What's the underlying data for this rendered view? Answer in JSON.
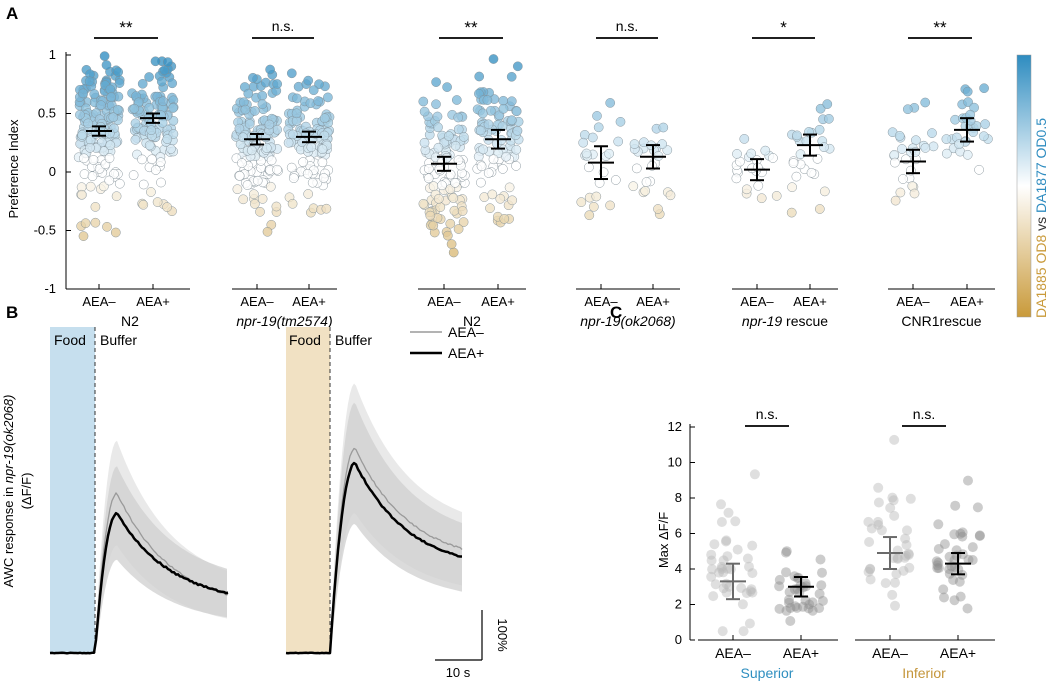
{
  "figure": {
    "panel_labels": [
      "A",
      "B",
      "C"
    ],
    "colorbar": {
      "label_high": "DA1877 OD0.5",
      "label_vs": "vs",
      "label_low": "DA1885 OD8",
      "color_high": "#2e8cc0",
      "color_mid": "#ffffff",
      "color_low": "#c99a3a"
    }
  },
  "chart_data": [
    {
      "id": "A",
      "type": "scatter",
      "title": "",
      "ylabel": "Preference Index",
      "ylim": [
        -1,
        1
      ],
      "yticks": [
        -1,
        -0.5,
        0,
        0.5,
        1
      ],
      "ytick_labels": [
        "-1",
        "-0.5",
        "0",
        "0.5",
        "1"
      ],
      "condition_labels": [
        "AEA–",
        "AEA+"
      ],
      "groups": [
        {
          "name": "N2",
          "italic": false,
          "prefix": "",
          "suffix": "",
          "significance": "**",
          "means": [
            0.35,
            0.46
          ],
          "errors": [
            0.04,
            0.04
          ],
          "spreads": [
            [
              -0.55,
              1.0,
              170
            ],
            [
              -0.35,
              1.0,
              120
            ]
          ]
        },
        {
          "name": "npr-19(tm2574)",
          "italic": true,
          "prefix": "",
          "suffix": "",
          "significance": "n.s.",
          "means": [
            0.28,
            0.3
          ],
          "errors": [
            0.045,
            0.045
          ],
          "spreads": [
            [
              -0.55,
              0.9,
              140
            ],
            [
              -0.35,
              0.88,
              115
            ]
          ]
        },
        {
          "name": "N2",
          "italic": false,
          "prefix": "",
          "suffix": "",
          "significance": "**",
          "means": [
            0.07,
            0.28
          ],
          "errors": [
            0.06,
            0.08
          ],
          "spreads": [
            [
              -0.95,
              0.88,
              120
            ],
            [
              -0.8,
              1.0,
              95
            ]
          ]
        },
        {
          "name": "npr-19(ok2068)",
          "italic": true,
          "prefix": "",
          "suffix": "",
          "significance": "n.s.",
          "means": [
            0.08,
            0.13
          ],
          "errors": [
            0.14,
            0.1
          ],
          "spreads": [
            [
              -0.76,
              0.62,
              24
            ],
            [
              -0.36,
              0.62,
              26
            ]
          ]
        },
        {
          "name": "",
          "italic": false,
          "prefix": "npr-19",
          "suffix": " rescue",
          "significance": "*",
          "means": [
            0.02,
            0.23
          ],
          "errors": [
            0.09,
            0.09
          ],
          "spreads": [
            [
              -0.36,
              0.4,
              22
            ],
            [
              -0.36,
              0.58,
              28
            ]
          ]
        },
        {
          "name": "CNR1rescue",
          "italic": false,
          "prefix": "",
          "suffix": "",
          "significance": "**",
          "means": [
            0.09,
            0.36
          ],
          "errors": [
            0.1,
            0.1
          ],
          "spreads": [
            [
              -0.32,
              0.7,
              28
            ],
            [
              -0.12,
              0.72,
              30
            ]
          ]
        }
      ]
    },
    {
      "id": "B",
      "type": "line",
      "ylabel_prefix": "AWC response in ",
      "ylabel_italic": "npr-19(ok2068)",
      "ylabel_line2": "(ΔF/F)",
      "period_labels": [
        "Food",
        "Buffer"
      ],
      "legend": [
        "AEA–",
        "AEA+"
      ],
      "scale_x_label": "10 s",
      "scale_y_label": "100%",
      "panels": [
        {
          "stimulus_color": "#c6dfee",
          "series": [
            {
              "name": "AEA–",
              "peak": 3.2,
              "end": 0.85
            },
            {
              "name": "AEA+",
              "peak": 2.8,
              "end": 0.95
            }
          ]
        },
        {
          "stimulus_color": "#f1e1c3",
          "series": [
            {
              "name": "AEA–",
              "peak": 4.1,
              "end": 1.75
            },
            {
              "name": "AEA+",
              "peak": 3.8,
              "end": 1.6
            }
          ]
        }
      ]
    },
    {
      "id": "C",
      "type": "scatter",
      "ylabel": "Max ΔF/F",
      "ylim": [
        0,
        12
      ],
      "yticks": [
        0,
        2,
        4,
        6,
        8,
        10,
        12
      ],
      "ytick_labels": [
        "0",
        "2",
        "4",
        "6",
        "8",
        "10",
        "12"
      ],
      "condition_labels": [
        "AEA–",
        "AEA+"
      ],
      "groups": [
        {
          "name": "Superior",
          "color": "#2f8fc0",
          "significance": "n.s.",
          "means": [
            3.3,
            3.0
          ],
          "errors": [
            1.0,
            0.55
          ],
          "spreads": [
            [
              0.5,
              11.0,
              40
            ],
            [
              0.7,
              6.3,
              36
            ]
          ]
        },
        {
          "name": "Inferior",
          "color": "#c4953a",
          "significance": "n.s.",
          "means": [
            4.9,
            4.3
          ],
          "errors": [
            0.9,
            0.6
          ],
          "spreads": [
            [
              0.7,
              11.4,
              36
            ],
            [
              0.9,
              9.1,
              38
            ]
          ]
        }
      ]
    }
  ]
}
